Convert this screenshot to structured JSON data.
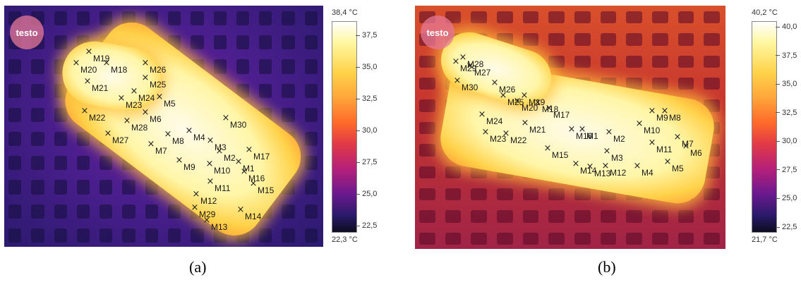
{
  "images": [
    {
      "id": "a",
      "caption": "(a)",
      "logo": "testo",
      "scale": {
        "max": "38,4 °C",
        "min": "22,3 °C",
        "ticks": [
          "37,5",
          "35,0",
          "32,5",
          "30,0",
          "27,5",
          "25,0",
          "22,5"
        ]
      },
      "markers": [
        "M1",
        "M2",
        "M3",
        "M4",
        "M5",
        "M6",
        "M7",
        "M8",
        "M9",
        "M10",
        "M11",
        "M12",
        "M13",
        "M14",
        "M15",
        "M16",
        "M17",
        "M18",
        "M19",
        "M20",
        "M21",
        "M22",
        "M23",
        "M24",
        "M25",
        "M26",
        "M27",
        "M28",
        "M29",
        "M30"
      ]
    },
    {
      "id": "b",
      "caption": "(b)",
      "logo": "testo",
      "scale": {
        "max": "40,2 °C",
        "min": "21,7 °C",
        "ticks": [
          "40,0",
          "37,5",
          "35,0",
          "32,5",
          "30,0",
          "27,5",
          "25,0",
          "22,5"
        ]
      },
      "markers": [
        "M1",
        "M2",
        "M3",
        "M4",
        "M5",
        "M6",
        "M7",
        "M8",
        "M9",
        "M10",
        "M11",
        "M12",
        "M13",
        "M14",
        "M15",
        "M16",
        "M17",
        "M18",
        "M19",
        "M20",
        "M21",
        "M22",
        "M23",
        "M24",
        "M25",
        "M26",
        "M27",
        "M28",
        "M29",
        "M30"
      ]
    }
  ],
  "colors": {
    "hot": "#fffbe8",
    "mid": "#ffa63a",
    "cold_a": "#2b1a6e",
    "cold_b": "#c7362f"
  }
}
